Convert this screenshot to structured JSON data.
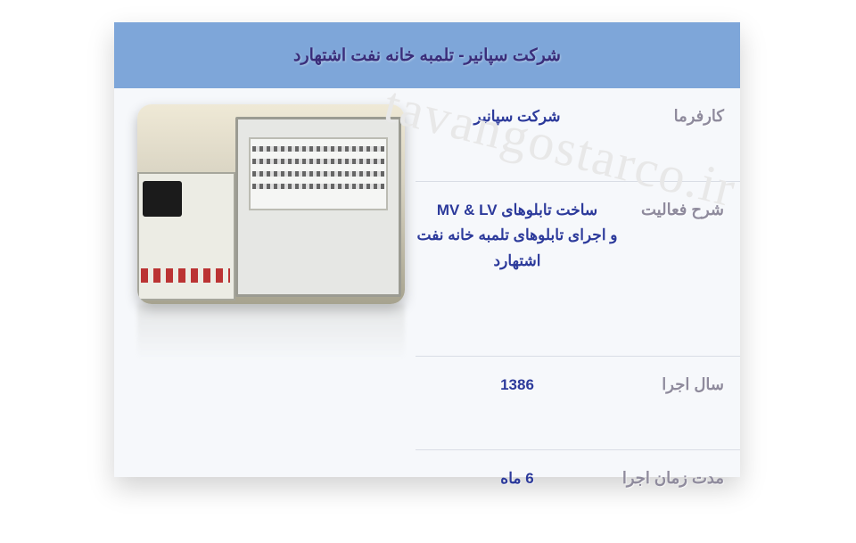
{
  "header": {
    "title": "شرکت سپانیر- تلمبه خانه نفت اشتهارد"
  },
  "rows": {
    "client": {
      "label": "کارفرما",
      "value": "شرکت سپانیر"
    },
    "activity": {
      "label": "شرح فعالیت",
      "value_line1_prefix": "ساخت تابلوهای ",
      "value_line1_latin": "MV & LV",
      "value_line2": "و اجرای تابلوهای  تلمبه خانه نفت اشتهارد"
    },
    "year": {
      "label": "سال اجرا",
      "value": "1386"
    },
    "duration": {
      "label": "مدت زمان اجرا",
      "value": "6 ماه"
    }
  },
  "watermark": {
    "text": "tavangostarco.ir"
  },
  "image": {
    "timestamp": ""
  },
  "colors": {
    "header_bg": "#7ea6d9",
    "header_text": "#3a2d7a",
    "card_bg": "#f6f8fb",
    "label_text": "#8f8b9d",
    "value_text": "#2c3a9b",
    "border": "#d9dde5",
    "watermark": "#e8e8e8"
  }
}
